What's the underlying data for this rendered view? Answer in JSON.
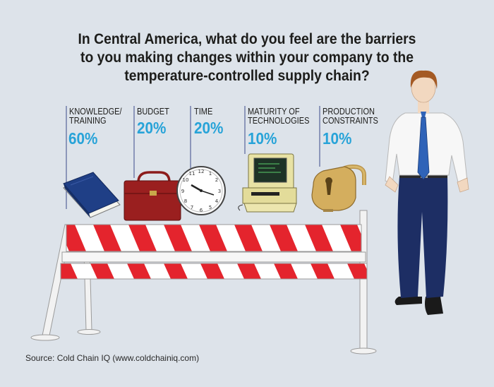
{
  "title_lines": [
    "In Central America, what do you feel are the barriers",
    "to you making changes within your company to the",
    "temperature-controlled supply chain?"
  ],
  "source": "Source: Cold Chain IQ (www.coldchainiq.com)",
  "chart_data": {
    "type": "bar",
    "title": "In Central America, what do you feel are the barriers to you making changes within your company to the temperature-controlled supply chain?",
    "categories": [
      "KNOWLEDGE/ TRAINING",
      "BUDGET",
      "TIME",
      "MATURITY OF TECHNOLOGIES",
      "PRODUCTION CONSTRAINTS"
    ],
    "category_lines": [
      [
        "KNOWLEDGE/",
        "TRAINING"
      ],
      [
        "BUDGET"
      ],
      [
        "TIME"
      ],
      [
        "MATURITY OF",
        "TECHNOLOGIES"
      ],
      [
        "PRODUCTION",
        "CONSTRAINTS"
      ]
    ],
    "values": [
      60,
      20,
      20,
      10,
      10
    ],
    "value_labels": [
      "60%",
      "20%",
      "20%",
      "10%",
      "10%"
    ],
    "unit": "%",
    "icons": [
      "book-icon",
      "briefcase-icon",
      "clock-icon",
      "computer-icon",
      "padlock-icon"
    ],
    "legend": "none",
    "grid": false
  },
  "colors": {
    "background": "#dde3ea",
    "accent_percent": "#27a3d8",
    "barrier_red": "#e4242d",
    "barrier_white": "#ffffff"
  }
}
